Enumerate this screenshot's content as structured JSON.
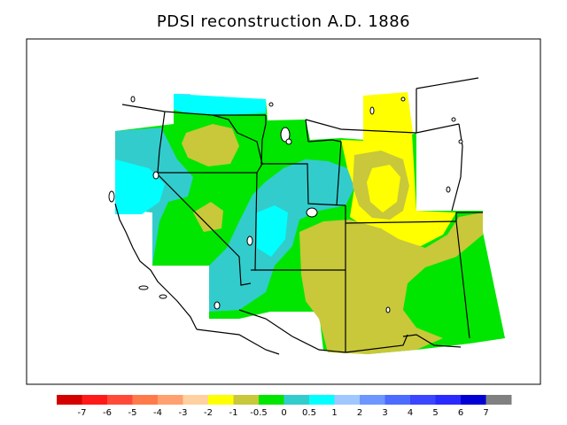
{
  "title": "PDSI reconstruction A.D. 1886",
  "colorbar": {
    "colors": [
      "#d40000",
      "#ff1a1a",
      "#ff4a3a",
      "#ff7a4a",
      "#ffa070",
      "#ffd0a0",
      "#ffff00",
      "#c8c83a",
      "#00e600",
      "#33cccc",
      "#00ffff",
      "#a0c8ff",
      "#6e96ff",
      "#4c6cff",
      "#3a46ff",
      "#2a2aff",
      "#0000d4",
      "#808080"
    ],
    "labels": [
      "-7",
      "-6",
      "-5",
      "-4",
      "-3",
      "-2",
      "-1",
      "-0.5",
      "0",
      "0.5",
      "1",
      "2",
      "3",
      "4",
      "5",
      "6",
      "7"
    ]
  },
  "legend_colors": {
    "yellow": "#ffff00",
    "olive": "#c8c83a",
    "green": "#00e600",
    "teal": "#33cccc",
    "cyan": "#00ffff",
    "lightblue": "#a0c8ff"
  }
}
